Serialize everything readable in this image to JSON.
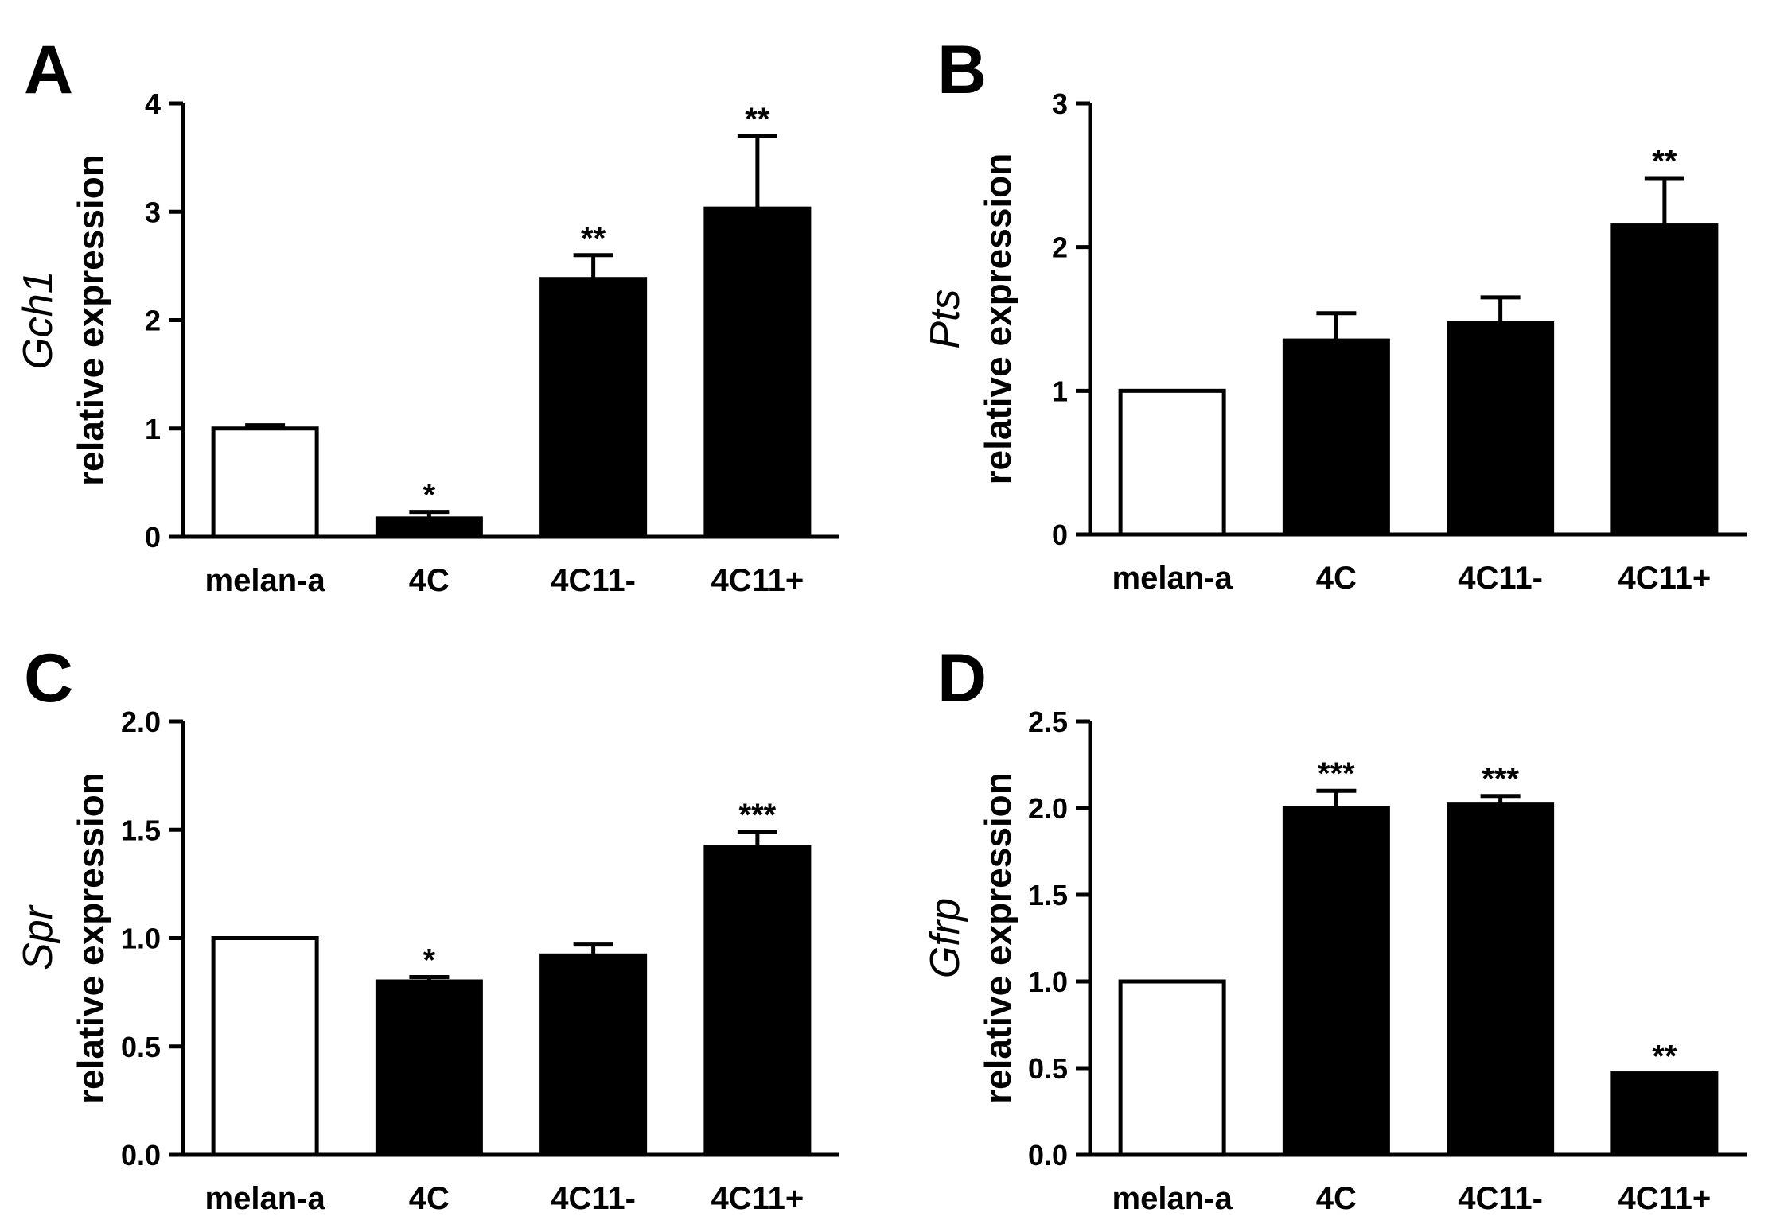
{
  "chart_data": [
    {
      "type": "bar",
      "panel_label": "A",
      "gene": "Gch1",
      "ylabel": "relative expression",
      "categories": [
        "melan-a",
        "4C",
        "4C11-",
        "4C11+"
      ],
      "values": [
        1.0,
        0.17,
        2.38,
        3.03
      ],
      "errors": [
        0.03,
        0.06,
        0.22,
        0.67
      ],
      "significance": [
        "",
        "*",
        "**",
        "**"
      ],
      "filled": [
        false,
        true,
        true,
        true
      ],
      "ylim": [
        0,
        4
      ],
      "yticks": [
        "0",
        "1",
        "2",
        "3",
        "4"
      ]
    },
    {
      "type": "bar",
      "panel_label": "B",
      "gene": "Pts",
      "ylabel": "relative expression",
      "categories": [
        "melan-a",
        "4C",
        "4C11-",
        "4C11+"
      ],
      "values": [
        1.0,
        1.35,
        1.47,
        2.15
      ],
      "errors": [
        0.0,
        0.19,
        0.18,
        0.33
      ],
      "significance": [
        "",
        "",
        "",
        "**"
      ],
      "filled": [
        false,
        true,
        true,
        true
      ],
      "ylim": [
        0,
        3
      ],
      "yticks": [
        "0",
        "1",
        "2",
        "3"
      ]
    },
    {
      "type": "bar",
      "panel_label": "C",
      "gene": "Spr",
      "ylabel": "relative expression",
      "categories": [
        "melan-a",
        "4C",
        "4C11-",
        "4C11+"
      ],
      "values": [
        1.0,
        0.8,
        0.92,
        1.42
      ],
      "errors": [
        0.0,
        0.02,
        0.05,
        0.07
      ],
      "significance": [
        "",
        "*",
        "",
        "***"
      ],
      "filled": [
        false,
        true,
        true,
        true
      ],
      "ylim": [
        0,
        2
      ],
      "yticks": [
        "0.0",
        "0.5",
        "1.0",
        "1.5",
        "2.0"
      ]
    },
    {
      "type": "bar",
      "panel_label": "D",
      "gene": "Gfrp",
      "ylabel": "relative expression",
      "categories": [
        "melan-a",
        "4C",
        "4C11-",
        "4C11+"
      ],
      "values": [
        1.0,
        2.0,
        2.02,
        0.47
      ],
      "errors": [
        0.0,
        0.1,
        0.05,
        0.0
      ],
      "significance": [
        "",
        "***",
        "***",
        "**"
      ],
      "filled": [
        false,
        true,
        true,
        true
      ],
      "ylim": [
        0,
        2.5
      ],
      "yticks": [
        "0.0",
        "0.5",
        "1.0",
        "1.5",
        "2.0",
        "2.5"
      ]
    }
  ]
}
